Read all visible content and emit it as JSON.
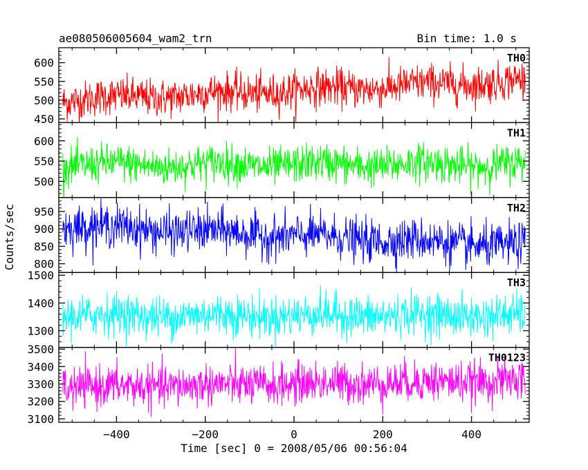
{
  "header": {
    "title": "ae080506005604_wam2_trn",
    "bin_time": "Bin time: 1.0 s"
  },
  "axes": {
    "ylabel": "Counts/sec",
    "xlabel": "Time [sec] 0 = 2008/05/06 00:56:04",
    "xlim": [
      -530,
      530
    ],
    "xticks": [
      -400,
      -200,
      0,
      200,
      400
    ]
  },
  "chart_data": {
    "type": "line",
    "x_range": [
      -521,
      521
    ],
    "bin_time": 1.0,
    "panels": [
      {
        "name": "TH0",
        "color": "#ff0000",
        "ylim": [
          440,
          640
        ],
        "yticks": [
          450,
          500,
          550,
          600
        ],
        "mean_start": 500,
        "mean_end": 552,
        "noise": 25
      },
      {
        "name": "TH1",
        "color": "#00ff00",
        "ylim": [
          460,
          645
        ],
        "yticks": [
          500,
          550,
          600
        ],
        "mean_start": 540,
        "mean_end": 542,
        "noise": 23
      },
      {
        "name": "TH2",
        "color": "#0000ff",
        "ylim": [
          775,
          990
        ],
        "yticks": [
          800,
          850,
          900,
          950
        ],
        "mean_start": 910,
        "mean_end": 850,
        "noise": 30
      },
      {
        "name": "TH3",
        "color": "#00ffff",
        "ylim": [
          1240,
          1510
        ],
        "yticks": [
          1300,
          1400,
          1500
        ],
        "mean_start": 1355,
        "mean_end": 1355,
        "noise": 37
      },
      {
        "name": "TH0123",
        "color": "#ff00ff",
        "ylim": [
          3080,
          3510
        ],
        "yticks": [
          3100,
          3200,
          3300,
          3400,
          3500
        ],
        "mean_start": 3280,
        "mean_end": 3320,
        "noise": 58
      }
    ]
  }
}
